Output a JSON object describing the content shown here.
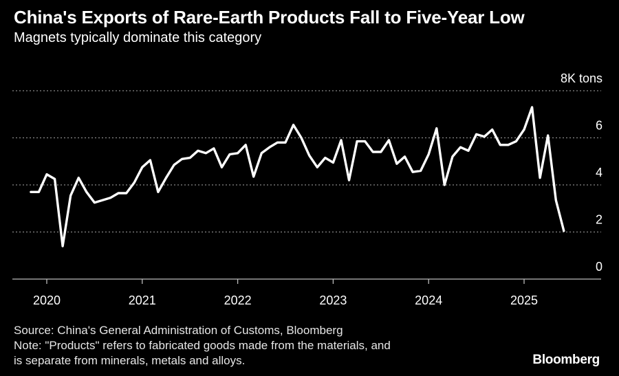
{
  "header": {
    "title": "China's Exports of Rare-Earth Products Fall to Five-Year Low",
    "subtitle": "Magnets typically dominate this category"
  },
  "footer": {
    "source": "Source: China's General Administration of Customs, Bloomberg",
    "note_line1": "Note: \"Products\" refers to fabricated goods made from the materials, and",
    "note_line2": "is separate from minerals, metals and alloys.",
    "brand": "Bloomberg"
  },
  "colors": {
    "background": "#000000",
    "line": "#ffffff",
    "grid": "#8a8a8a",
    "text": "#ffffff"
  },
  "chart_data": {
    "type": "line",
    "title": "China's Exports of Rare-Earth Products Fall to Five-Year Low",
    "subtitle": "Magnets typically dominate this category",
    "ylabel": "",
    "unit": "K tons",
    "ylim": [
      0,
      8
    ],
    "yticks": [
      {
        "value": 8,
        "label": "8K tons"
      },
      {
        "value": 6,
        "label": "6"
      },
      {
        "value": 4,
        "label": "4"
      },
      {
        "value": 2,
        "label": "2"
      },
      {
        "value": 0,
        "label": "0"
      }
    ],
    "xticks": [
      "2020",
      "2021",
      "2022",
      "2023",
      "2024",
      "2025"
    ],
    "xlim": [
      "2019-10",
      "2025-12"
    ],
    "grid": true,
    "series": [
      {
        "values": [
          {
            "x": "2019-11",
            "y": 3.7
          },
          {
            "x": "2019-12",
            "y": 3.7
          },
          {
            "x": "2020-01",
            "y": 4.45
          },
          {
            "x": "2020-02",
            "y": 4.25
          },
          {
            "x": "2020-03",
            "y": 1.4
          },
          {
            "x": "2020-04",
            "y": 3.55
          },
          {
            "x": "2020-05",
            "y": 4.3
          },
          {
            "x": "2020-06",
            "y": 3.7
          },
          {
            "x": "2020-07",
            "y": 3.25
          },
          {
            "x": "2020-08",
            "y": 3.35
          },
          {
            "x": "2020-09",
            "y": 3.45
          },
          {
            "x": "2020-10",
            "y": 3.65
          },
          {
            "x": "2020-11",
            "y": 3.65
          },
          {
            "x": "2020-12",
            "y": 4.1
          },
          {
            "x": "2021-01",
            "y": 4.75
          },
          {
            "x": "2021-02",
            "y": 5.05
          },
          {
            "x": "2021-03",
            "y": 3.7
          },
          {
            "x": "2021-04",
            "y": 4.3
          },
          {
            "x": "2021-05",
            "y": 4.85
          },
          {
            "x": "2021-06",
            "y": 5.1
          },
          {
            "x": "2021-07",
            "y": 5.15
          },
          {
            "x": "2021-08",
            "y": 5.45
          },
          {
            "x": "2021-09",
            "y": 5.35
          },
          {
            "x": "2021-10",
            "y": 5.55
          },
          {
            "x": "2021-11",
            "y": 4.75
          },
          {
            "x": "2021-12",
            "y": 5.3
          },
          {
            "x": "2022-01",
            "y": 5.35
          },
          {
            "x": "2022-02",
            "y": 5.7
          },
          {
            "x": "2022-03",
            "y": 4.35
          },
          {
            "x": "2022-04",
            "y": 5.35
          },
          {
            "x": "2022-05",
            "y": 5.6
          },
          {
            "x": "2022-06",
            "y": 5.8
          },
          {
            "x": "2022-07",
            "y": 5.8
          },
          {
            "x": "2022-08",
            "y": 6.55
          },
          {
            "x": "2022-09",
            "y": 6.0
          },
          {
            "x": "2022-10",
            "y": 5.25
          },
          {
            "x": "2022-11",
            "y": 4.75
          },
          {
            "x": "2022-12",
            "y": 5.15
          },
          {
            "x": "2023-01",
            "y": 4.95
          },
          {
            "x": "2023-02",
            "y": 5.9
          },
          {
            "x": "2023-03",
            "y": 4.2
          },
          {
            "x": "2023-04",
            "y": 5.85
          },
          {
            "x": "2023-05",
            "y": 5.85
          },
          {
            "x": "2023-06",
            "y": 5.4
          },
          {
            "x": "2023-07",
            "y": 5.4
          },
          {
            "x": "2023-08",
            "y": 5.9
          },
          {
            "x": "2023-09",
            "y": 4.9
          },
          {
            "x": "2023-10",
            "y": 5.2
          },
          {
            "x": "2023-11",
            "y": 4.55
          },
          {
            "x": "2023-12",
            "y": 4.6
          },
          {
            "x": "2024-01",
            "y": 5.3
          },
          {
            "x": "2024-02",
            "y": 6.4
          },
          {
            "x": "2024-03",
            "y": 4.0
          },
          {
            "x": "2024-04",
            "y": 5.2
          },
          {
            "x": "2024-05",
            "y": 5.6
          },
          {
            "x": "2024-06",
            "y": 5.45
          },
          {
            "x": "2024-07",
            "y": 6.15
          },
          {
            "x": "2024-08",
            "y": 6.05
          },
          {
            "x": "2024-09",
            "y": 6.35
          },
          {
            "x": "2024-10",
            "y": 5.7
          },
          {
            "x": "2024-11",
            "y": 5.7
          },
          {
            "x": "2024-12",
            "y": 5.85
          },
          {
            "x": "2025-01",
            "y": 6.35
          },
          {
            "x": "2025-02",
            "y": 7.3
          },
          {
            "x": "2025-03",
            "y": 4.3
          },
          {
            "x": "2025-04",
            "y": 6.1
          },
          {
            "x": "2025-05",
            "y": 3.35
          },
          {
            "x": "2025-06",
            "y": 2.05
          }
        ]
      }
    ]
  }
}
